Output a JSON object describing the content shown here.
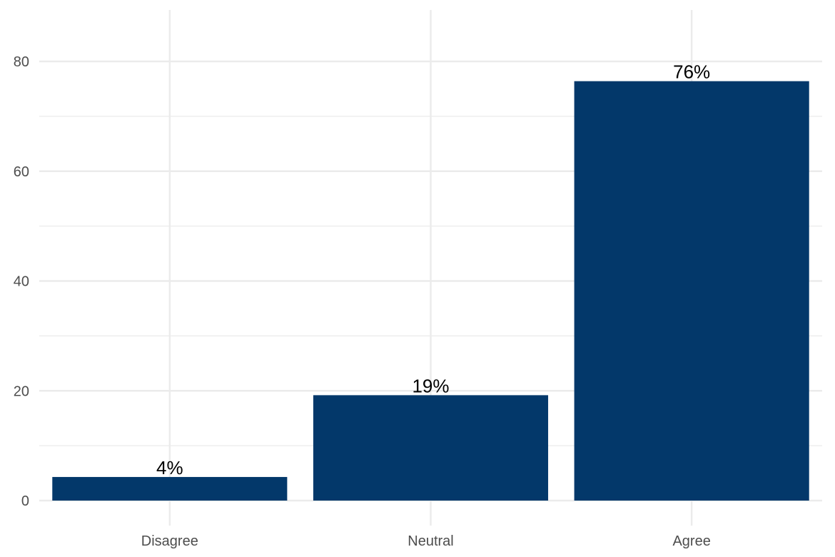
{
  "chart_data": {
    "type": "bar",
    "title": "",
    "xlabel": "",
    "ylabel": "",
    "categories": [
      "Disagree",
      "Neutral",
      "Agree"
    ],
    "values": [
      4.3,
      19.2,
      76.4
    ],
    "bar_labels": [
      "4%",
      "19%",
      "76%"
    ],
    "ylim": [
      0,
      88
    ],
    "yticks": [
      0,
      20,
      40,
      60,
      80
    ],
    "grid": true,
    "legend": null,
    "colors": {
      "bar": "#03386a",
      "grid": "#ebebeb",
      "tick_text": "#4d4d4d",
      "label_text": "#000000"
    }
  }
}
